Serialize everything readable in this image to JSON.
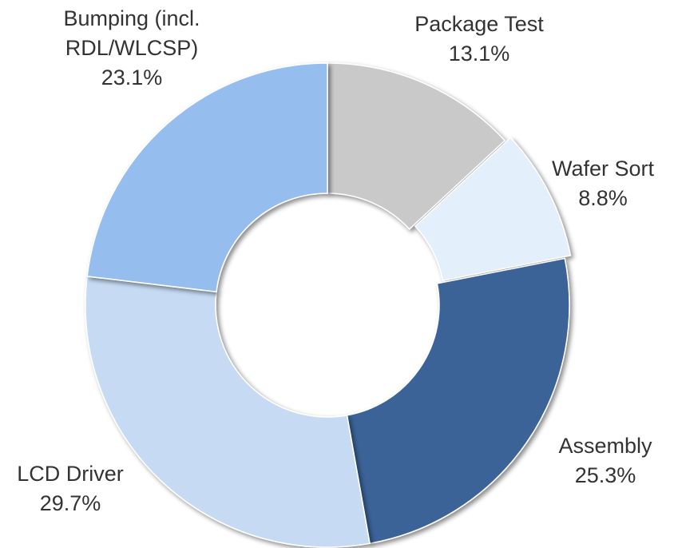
{
  "chart_data": {
    "type": "donut",
    "categories": [
      "Package Test",
      "Wafer Sort",
      "Assembly",
      "LCD Driver",
      "Bumping (incl. RDL/WLCSP)"
    ],
    "values": [
      13.1,
      8.8,
      25.3,
      29.7,
      23.1
    ],
    "value_labels": [
      "13.1%",
      "8.8%",
      "25.3%",
      "29.7%",
      "23.1%"
    ],
    "colors": [
      "#c9c9c9",
      "#e4effc",
      "#3b6498",
      "#c6dbf3",
      "#95bdee"
    ]
  }
}
